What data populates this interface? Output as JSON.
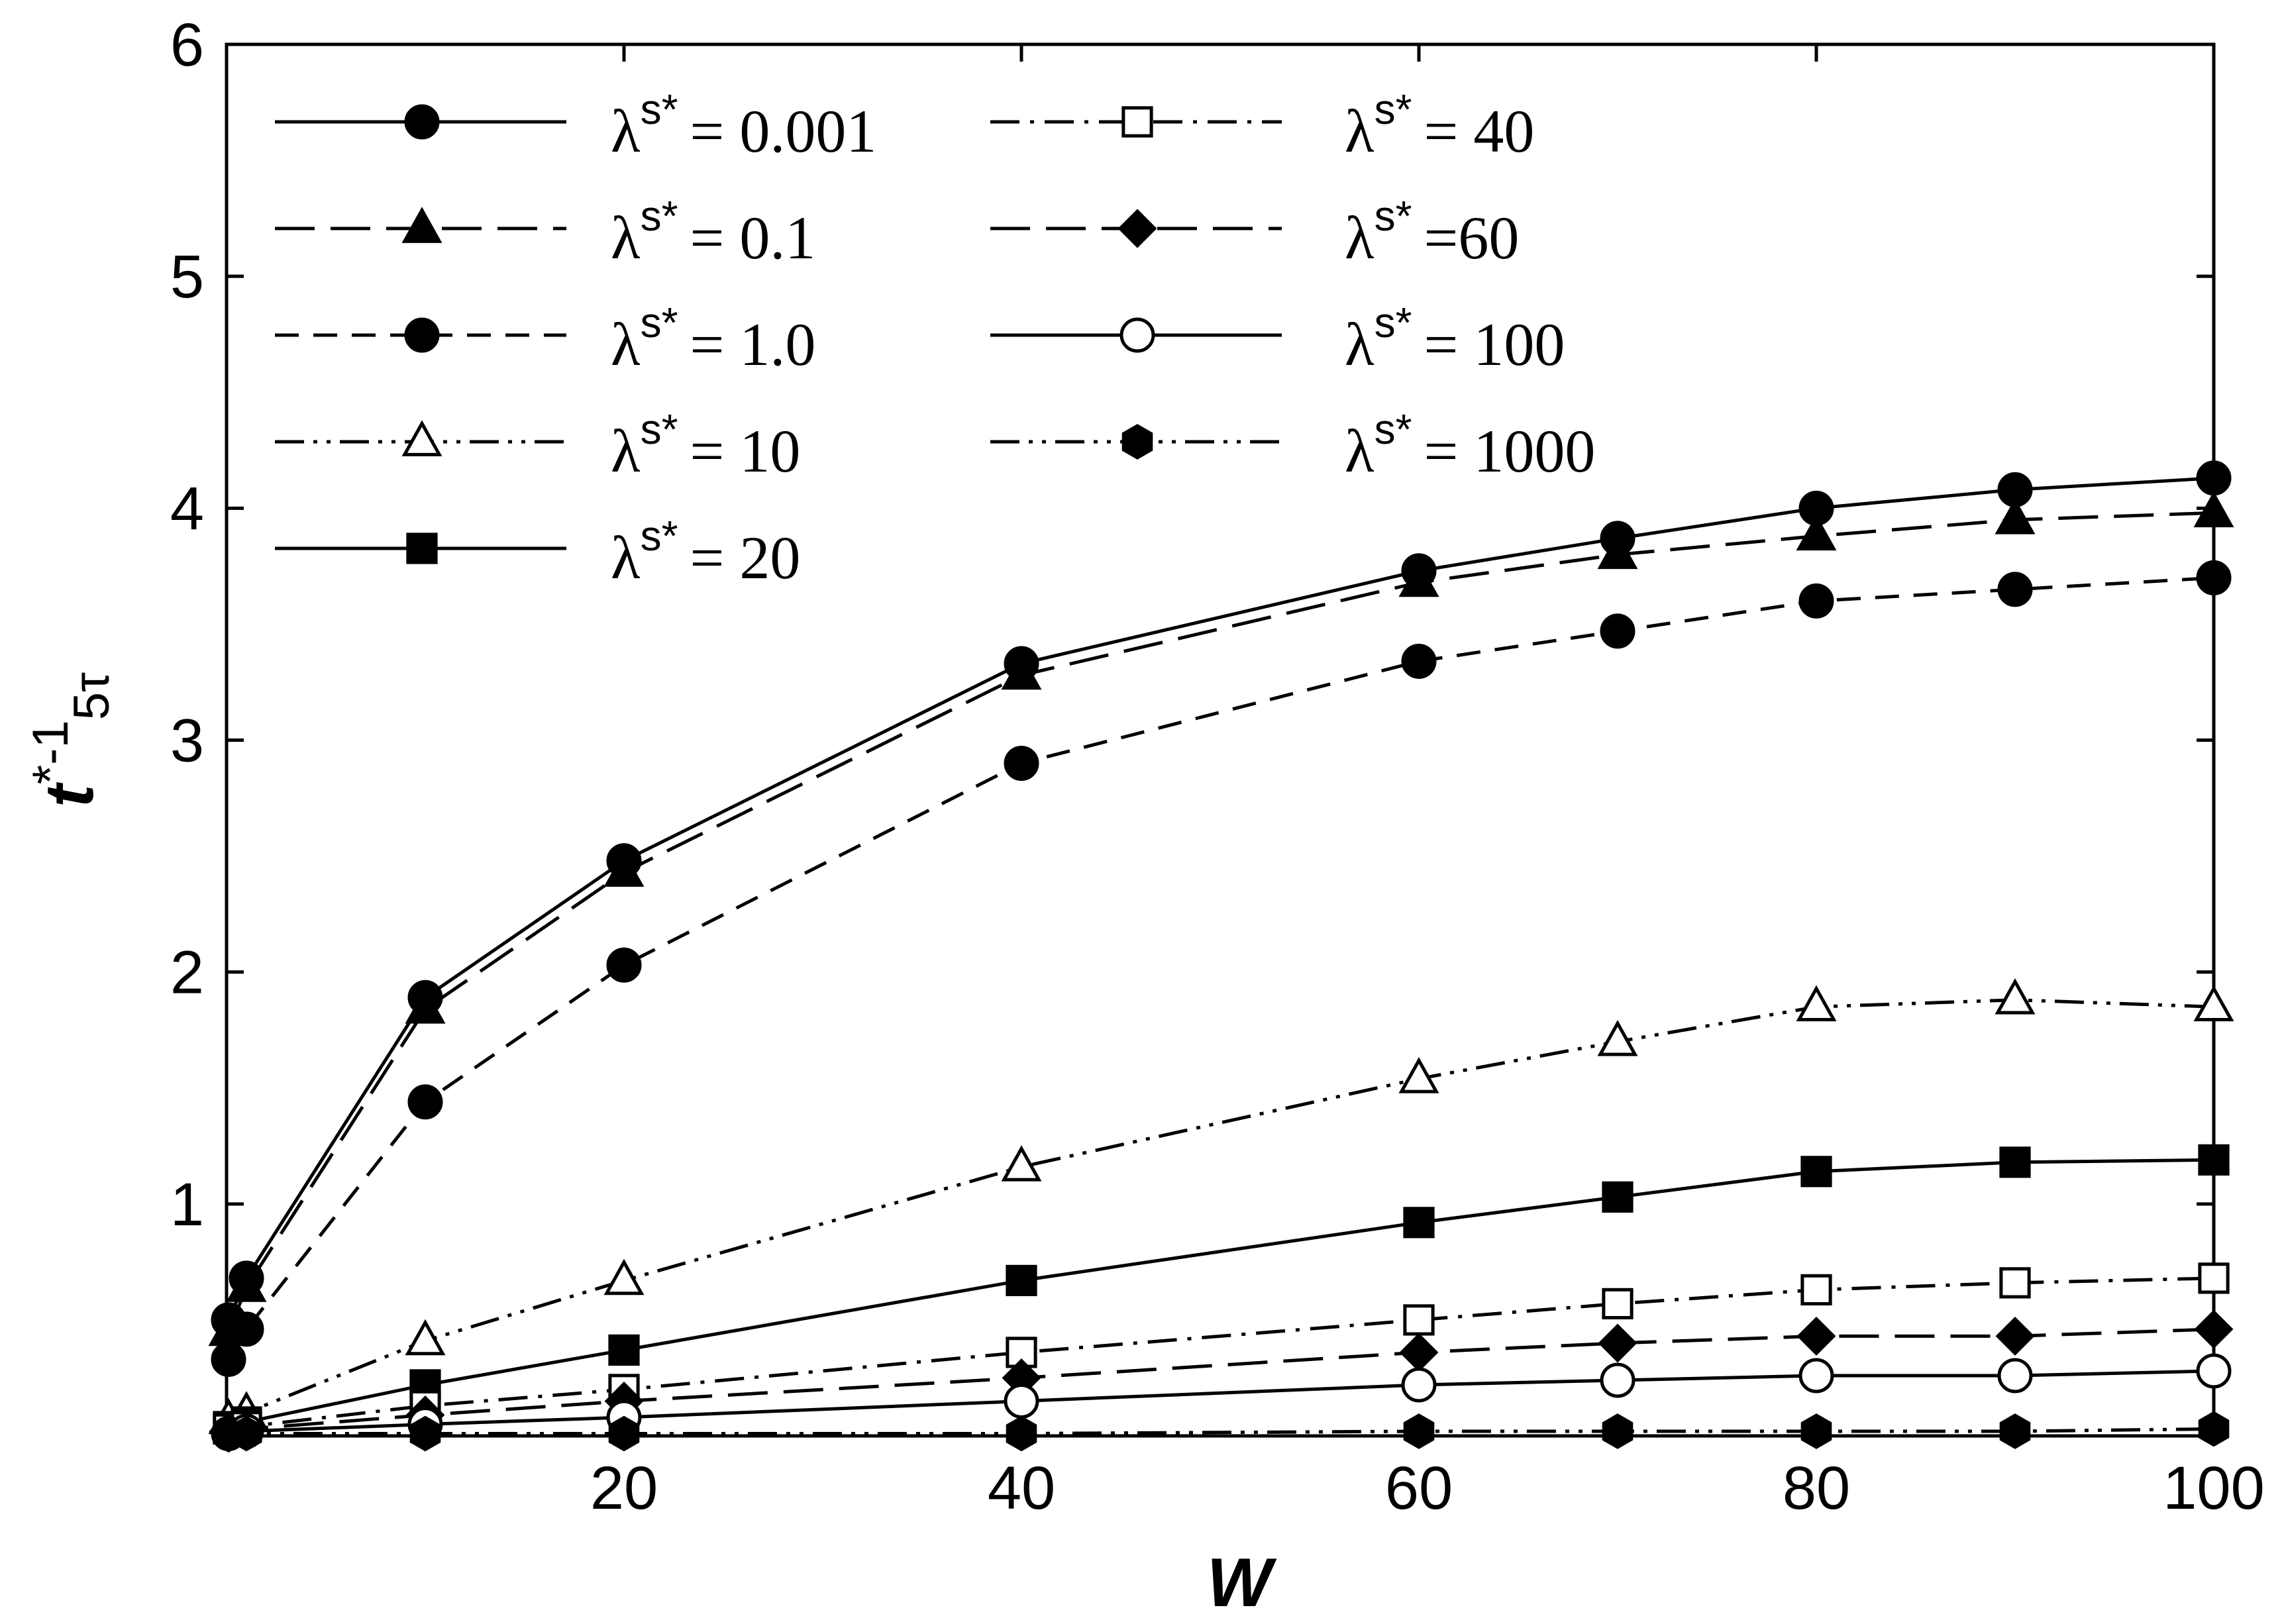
{
  "chart_data": {
    "type": "line",
    "title": "",
    "xlabel": "W",
    "ylabel": "t*-1 5τ",
    "ylabel_main": "t",
    "ylabel_sup": "*-1",
    "ylabel_sub": "5τ",
    "xlim": [
      0,
      100
    ],
    "ylim": [
      0,
      6
    ],
    "xticks": [
      20,
      40,
      60,
      80,
      100
    ],
    "yticks": [
      1,
      2,
      3,
      4,
      5,
      6
    ],
    "xtick_labels": [
      "20",
      "40",
      "60",
      "80",
      "100"
    ],
    "ytick_labels": [
      "1",
      "2",
      "3",
      "4",
      "5",
      "6"
    ],
    "grid": false,
    "legend_position": "top-left",
    "legend_symbol": "λ",
    "legend_sup": "s*",
    "x": [
      0.1,
      1,
      10,
      20,
      40,
      60,
      70,
      80,
      90,
      100
    ],
    "series": [
      {
        "name": "λs* = 0.001",
        "label_rest": "= 0.001",
        "marker": "filled-circle",
        "dash": "solid",
        "legend_col": 0,
        "legend_row": 0,
        "values": [
          0.5,
          0.68,
          1.89,
          2.48,
          3.33,
          3.73,
          3.87,
          4.0,
          4.08,
          4.13
        ]
      },
      {
        "name": "λs* = 0.1",
        "label_rest": "= 0.1",
        "marker": "filled-triangle",
        "dash": "long-dash",
        "legend_col": 0,
        "legend_row": 1,
        "values": [
          0.45,
          0.64,
          1.84,
          2.43,
          3.28,
          3.68,
          3.8,
          3.88,
          3.95,
          3.98
        ]
      },
      {
        "name": "λs* = 1.0",
        "label_rest": "= 1.0",
        "marker": "filled-circle",
        "dash": "dash",
        "legend_col": 0,
        "legend_row": 2,
        "values": [
          0.33,
          0.46,
          1.44,
          2.03,
          2.9,
          3.34,
          3.47,
          3.6,
          3.65,
          3.7
        ]
      },
      {
        "name": "λs* = 10",
        "label_rest": "= 10",
        "marker": "open-triangle",
        "dash": "dash-dot-dot",
        "legend_col": 0,
        "legend_row": 3,
        "values": [
          0.07,
          0.1,
          0.41,
          0.67,
          1.16,
          1.54,
          1.7,
          1.85,
          1.88,
          1.85
        ]
      },
      {
        "name": "λs* = 20",
        "label_rest": "= 20",
        "marker": "filled-square",
        "dash": "solid",
        "legend_col": 0,
        "legend_row": 4,
        "values": [
          0.04,
          0.06,
          0.22,
          0.37,
          0.67,
          0.92,
          1.03,
          1.14,
          1.18,
          1.19
        ]
      },
      {
        "name": "λs* = 40",
        "label_rest": "= 40",
        "marker": "open-square",
        "dash": "dash-dot",
        "legend_col": 1,
        "legend_row": 0,
        "values": [
          0.03,
          0.04,
          0.13,
          0.2,
          0.36,
          0.5,
          0.57,
          0.63,
          0.66,
          0.68
        ]
      },
      {
        "name": "λs* =60",
        "label_rest": "=60",
        "marker": "filled-diamond",
        "dash": "long-dash",
        "legend_col": 1,
        "legend_row": 1,
        "values": [
          0.02,
          0.03,
          0.09,
          0.15,
          0.25,
          0.36,
          0.4,
          0.43,
          0.43,
          0.46
        ]
      },
      {
        "name": "λs* = 100",
        "label_rest": "= 100",
        "marker": "open-circle",
        "dash": "solid",
        "legend_col": 1,
        "legend_row": 2,
        "values": [
          0.01,
          0.02,
          0.05,
          0.08,
          0.15,
          0.22,
          0.24,
          0.26,
          0.26,
          0.28
        ]
      },
      {
        "name": "λs* = 1000",
        "label_rest": "= 1000",
        "marker": "filled-hexagon",
        "dash": "dash-dot-dot",
        "legend_col": 1,
        "legend_row": 3,
        "values": [
          0.005,
          0.01,
          0.01,
          0.01,
          0.01,
          0.02,
          0.02,
          0.02,
          0.02,
          0.03
        ]
      }
    ]
  }
}
